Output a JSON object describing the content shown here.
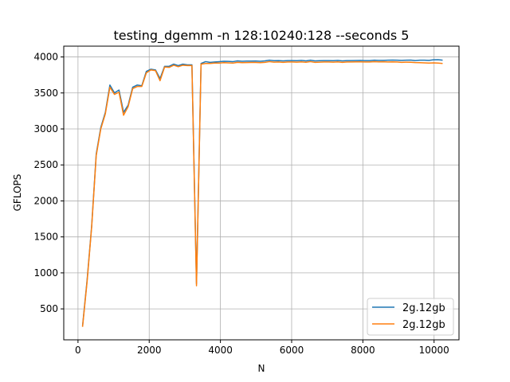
{
  "chart_data": {
    "type": "line",
    "title": "testing_dgemm -n 128:10240:128 --seconds 5",
    "xlabel": "N",
    "ylabel": "GFLOPS",
    "xlim": [
      -400,
      10700
    ],
    "ylim": [
      70,
      4150
    ],
    "xticks": [
      0,
      2000,
      4000,
      6000,
      8000,
      10000
    ],
    "yticks": [
      500,
      1000,
      1500,
      2000,
      2500,
      3000,
      3500,
      4000
    ],
    "grid": true,
    "legend_placement": "lower-right",
    "series": [
      {
        "name": "2g.12gb",
        "color": "#1f77b4",
        "x": [
          128,
          256,
          384,
          512,
          640,
          768,
          896,
          1024,
          1152,
          1280,
          1408,
          1536,
          1664,
          1792,
          1920,
          2048,
          2176,
          2304,
          2432,
          2560,
          2688,
          2816,
          2944,
          3072,
          3200,
          3328,
          3456,
          3584,
          3712,
          3840,
          3968,
          4096,
          4224,
          4352,
          4480,
          4608,
          4736,
          4864,
          4992,
          5120,
          5248,
          5376,
          5504,
          5632,
          5760,
          5888,
          6016,
          6144,
          6272,
          6400,
          6528,
          6656,
          6784,
          6912,
          7040,
          7168,
          7296,
          7424,
          7552,
          7680,
          7808,
          7936,
          8064,
          8192,
          8320,
          8448,
          8576,
          8704,
          8832,
          8960,
          9088,
          9216,
          9344,
          9472,
          9600,
          9728,
          9856,
          9984,
          10112,
          10240
        ],
        "values": [
          260,
          900,
          1650,
          2650,
          3020,
          3230,
          3610,
          3500,
          3540,
          3230,
          3330,
          3580,
          3610,
          3600,
          3800,
          3830,
          3820,
          3700,
          3870,
          3870,
          3900,
          3880,
          3900,
          3890,
          3890,
          850,
          3910,
          3935,
          3925,
          3930,
          3935,
          3940,
          3938,
          3935,
          3945,
          3940,
          3942,
          3943,
          3944,
          3940,
          3945,
          3955,
          3948,
          3950,
          3945,
          3950,
          3950,
          3948,
          3952,
          3946,
          3955,
          3945,
          3948,
          3950,
          3950,
          3948,
          3952,
          3945,
          3950,
          3950,
          3951,
          3952,
          3950,
          3950,
          3955,
          3952,
          3953,
          3955,
          3956,
          3955,
          3953,
          3955,
          3956,
          3950,
          3955,
          3955,
          3953,
          3960,
          3962,
          3955
        ]
      },
      {
        "name": "2g.12gb",
        "color": "#ff7f0e",
        "x": [
          128,
          256,
          384,
          512,
          640,
          768,
          896,
          1024,
          1152,
          1280,
          1408,
          1536,
          1664,
          1792,
          1920,
          2048,
          2176,
          2304,
          2432,
          2560,
          2688,
          2816,
          2944,
          3072,
          3200,
          3328,
          3456,
          3584,
          3712,
          3840,
          3968,
          4096,
          4224,
          4352,
          4480,
          4608,
          4736,
          4864,
          4992,
          5120,
          5248,
          5376,
          5504,
          5632,
          5760,
          5888,
          6016,
          6144,
          6272,
          6400,
          6528,
          6656,
          6784,
          6912,
          7040,
          7168,
          7296,
          7424,
          7552,
          7680,
          7808,
          7936,
          8064,
          8192,
          8320,
          8448,
          8576,
          8704,
          8832,
          8960,
          9088,
          9216,
          9344,
          9472,
          9600,
          9728,
          9856,
          9984,
          10112,
          10240
        ],
        "values": [
          250,
          880,
          1640,
          2630,
          3000,
          3210,
          3580,
          3480,
          3510,
          3190,
          3310,
          3560,
          3590,
          3590,
          3780,
          3820,
          3810,
          3670,
          3860,
          3855,
          3885,
          3865,
          3885,
          3880,
          3880,
          820,
          3900,
          3910,
          3910,
          3915,
          3915,
          3920,
          3918,
          3915,
          3925,
          3920,
          3922,
          3923,
          3924,
          3920,
          3925,
          3935,
          3928,
          3930,
          3925,
          3930,
          3930,
          3928,
          3932,
          3926,
          3935,
          3925,
          3928,
          3930,
          3930,
          3928,
          3932,
          3925,
          3930,
          3930,
          3931,
          3932,
          3930,
          3930,
          3935,
          3932,
          3933,
          3930,
          3932,
          3930,
          3925,
          3928,
          3926,
          3922,
          3920,
          3918,
          3915,
          3918,
          3915,
          3910
        ]
      }
    ]
  }
}
